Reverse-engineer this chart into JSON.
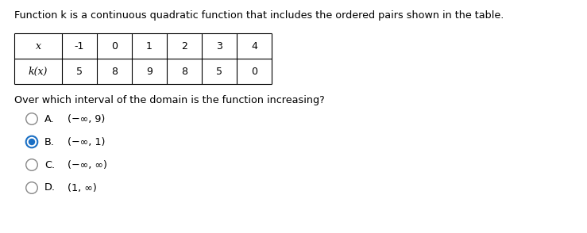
{
  "title": "Function k is a continuous quadratic function that includes the ordered pairs shown in the table.",
  "x_label": "x",
  "kx_label": "k(x)",
  "x_values": [
    "-1",
    "0",
    "1",
    "2",
    "3",
    "4"
  ],
  "kx_values": [
    "5",
    "8",
    "9",
    "8",
    "5",
    "0"
  ],
  "question": "Over which interval of the domain is the function increasing?",
  "options": [
    {
      "label": "A.",
      "text": "(−∞, 9)"
    },
    {
      "label": "B.",
      "text": "(−∞, 1)"
    },
    {
      "label": "C.",
      "text": "(−∞, ∞)"
    },
    {
      "label": "D.",
      "text": "(1, ∞)"
    }
  ],
  "selected": 1,
  "bg_color": "#ffffff",
  "text_color": "#000000",
  "table_border_color": "#000000",
  "radio_selected_edge": "#1a6fc4",
  "radio_selected_fill": "#1a6fc4",
  "radio_unselected_edge": "#888888"
}
